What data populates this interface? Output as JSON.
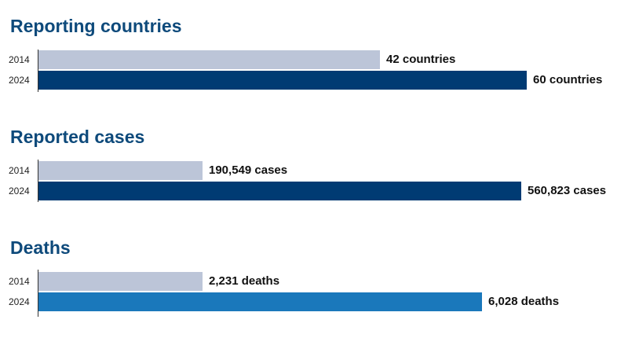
{
  "chart_data": [
    {
      "type": "bar",
      "orientation": "horizontal",
      "title": "Reporting countries",
      "categories": [
        "2014",
        "2024"
      ],
      "values": [
        42,
        60
      ],
      "value_labels": [
        "42 countries",
        "60 countries"
      ],
      "colors": [
        "#bcc5d8",
        "#003b73"
      ],
      "xlim": [
        0,
        65.6
      ]
    },
    {
      "type": "bar",
      "orientation": "horizontal",
      "title": "Reported cases",
      "categories": [
        "2014",
        "2024"
      ],
      "values": [
        190549,
        560823
      ],
      "value_labels": [
        "190,549 cases",
        "560,823 cases"
      ],
      "colors": [
        "#bcc5d8",
        "#003b73"
      ],
      "xlim": [
        0,
        620000
      ]
    },
    {
      "type": "bar",
      "orientation": "horizontal",
      "title": "Deaths",
      "categories": [
        "2014",
        "2024"
      ],
      "values": [
        2231,
        6028
      ],
      "value_labels": [
        "2,231 deaths",
        "6,028 deaths"
      ],
      "colors": [
        "#bcc5d8",
        "#1a78bb"
      ],
      "xlim": [
        0,
        7250
      ]
    }
  ]
}
